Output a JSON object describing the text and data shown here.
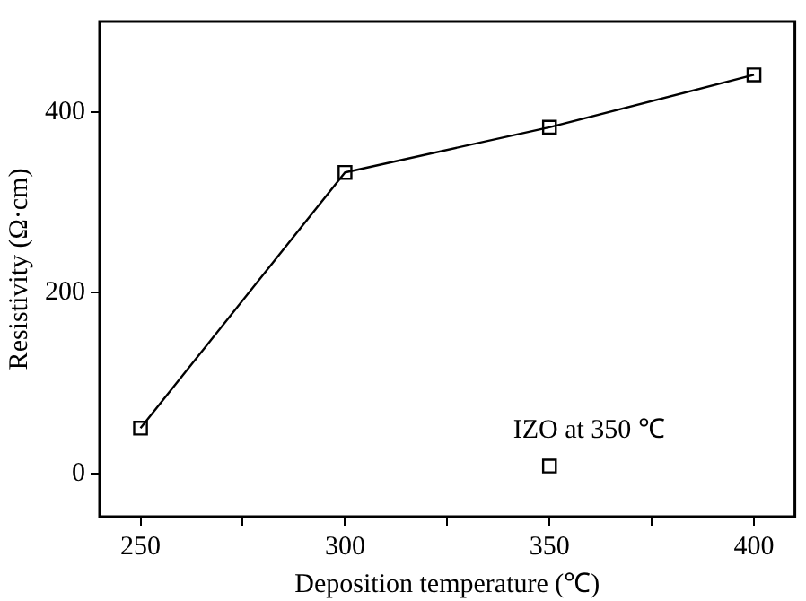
{
  "chart_data": {
    "type": "line",
    "xlabel": "Deposition temperature (℃)",
    "ylabel": "Resistivity (Ω·cm)",
    "xlim": [
      240,
      410
    ],
    "ylim": [
      -48,
      500
    ],
    "xticks": [
      250,
      {
        "value": 275,
        "label": null
      },
      300,
      {
        "value": 325,
        "label": null
      },
      350,
      {
        "value": 375,
        "label": null
      },
      400
    ],
    "yticks": [
      0,
      200,
      400
    ],
    "grid": false,
    "legend": false,
    "marker": "square",
    "line_style": "solid",
    "series": [
      {
        "color": "#000000",
        "x": [
          250,
          300,
          350,
          400
        ],
        "values": [
          50,
          333,
          383,
          441
        ]
      },
      {
        "type": "scatter",
        "name": "IZO at 350 ℃",
        "color": "#000000",
        "x": [
          350
        ],
        "values": [
          8
        ]
      }
    ]
  }
}
